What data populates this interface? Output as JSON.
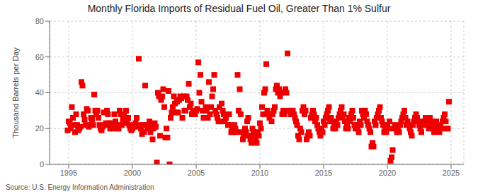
{
  "chart_data": {
    "type": "scatter",
    "title": "Monthly Florida Imports of Residual Fuel Oil, Greater Than 1% Sulfur",
    "ylabel": "Thousand Barrels per Day",
    "annotations": [
      "Source: U.S. Energy Information Administration"
    ],
    "color": "#EE0000",
    "marker": "square",
    "grid": true,
    "xlim": [
      1993.5,
      2026.0
    ],
    "xticks": [
      1995,
      2000,
      2005,
      2010,
      2015,
      2020,
      2025
    ],
    "ylim": [
      0,
      80
    ],
    "yticks": [
      0,
      20,
      40,
      60,
      80
    ],
    "x": [
      1994.917,
      1995.0,
      1995.083,
      1995.167,
      1995.25,
      1995.333,
      1995.417,
      1995.5,
      1995.583,
      1995.667,
      1995.75,
      1995.833,
      1995.917,
      1996.0,
      1996.083,
      1996.167,
      1996.25,
      1996.333,
      1996.417,
      1996.5,
      1996.583,
      1996.667,
      1996.75,
      1996.833,
      1996.917,
      1997.0,
      1997.083,
      1997.167,
      1997.25,
      1997.333,
      1997.417,
      1997.5,
      1997.583,
      1997.667,
      1997.75,
      1997.833,
      1997.917,
      1998.0,
      1998.083,
      1998.167,
      1998.25,
      1998.333,
      1998.417,
      1998.5,
      1998.583,
      1998.667,
      1998.75,
      1998.833,
      1998.917,
      1999.0,
      1999.083,
      1999.167,
      1999.25,
      1999.333,
      1999.417,
      1999.5,
      1999.583,
      1999.667,
      1999.75,
      1999.833,
      1999.917,
      2000.0,
      2000.083,
      2000.167,
      2000.25,
      2000.333,
      2000.417,
      2000.5,
      2000.583,
      2000.667,
      2000.75,
      2000.833,
      2000.917,
      2001.0,
      2001.083,
      2001.167,
      2001.25,
      2001.333,
      2001.417,
      2001.5,
      2001.583,
      2001.667,
      2001.75,
      2001.833,
      2001.917,
      2002.0,
      2002.083,
      2002.167,
      2002.25,
      2002.333,
      2002.417,
      2002.5,
      2002.583,
      2002.667,
      2002.75,
      2002.833,
      2002.917,
      2003.0,
      2003.083,
      2003.167,
      2003.25,
      2003.333,
      2003.417,
      2003.5,
      2003.583,
      2003.667,
      2003.75,
      2003.833,
      2003.917,
      2004.0,
      2004.083,
      2004.167,
      2004.25,
      2004.333,
      2004.417,
      2004.5,
      2004.583,
      2004.667,
      2004.75,
      2004.833,
      2004.917,
      2005.0,
      2005.083,
      2005.167,
      2005.25,
      2005.333,
      2005.417,
      2005.5,
      2005.583,
      2005.667,
      2005.75,
      2005.833,
      2005.917,
      2006.0,
      2006.083,
      2006.167,
      2006.25,
      2006.333,
      2006.417,
      2006.5,
      2006.583,
      2006.667,
      2006.75,
      2006.833,
      2006.917,
      2007.0,
      2007.083,
      2007.167,
      2007.25,
      2007.333,
      2007.417,
      2007.5,
      2007.583,
      2007.667,
      2007.75,
      2007.833,
      2007.917,
      2008.0,
      2008.083,
      2008.167,
      2008.25,
      2008.333,
      2008.417,
      2008.5,
      2008.583,
      2008.667,
      2008.75,
      2008.833,
      2008.917,
      2009.0,
      2009.083,
      2009.167,
      2009.25,
      2009.333,
      2009.417,
      2009.5,
      2009.583,
      2009.667,
      2009.75,
      2009.833,
      2009.917,
      2010.0,
      2010.083,
      2010.167,
      2010.25,
      2010.333,
      2010.417,
      2010.5,
      2010.583,
      2010.667,
      2010.75,
      2010.833,
      2010.917,
      2011.0,
      2011.083,
      2011.167,
      2011.25,
      2011.333,
      2011.417,
      2011.5,
      2011.583,
      2011.667,
      2011.75,
      2011.833,
      2011.917,
      2012.0,
      2012.083,
      2012.167,
      2012.25,
      2012.333,
      2012.417,
      2012.5,
      2012.583,
      2012.667,
      2012.75,
      2012.833,
      2012.917,
      2013.0,
      2013.083,
      2013.167,
      2013.25,
      2013.333,
      2013.417,
      2013.5,
      2013.583,
      2013.667,
      2013.75,
      2013.833,
      2013.917,
      2014.0,
      2014.083,
      2014.167,
      2014.25,
      2014.333,
      2014.417,
      2014.5,
      2014.583,
      2014.667,
      2014.75,
      2014.833,
      2014.917,
      2015.0,
      2015.083,
      2015.167,
      2015.25,
      2015.333,
      2015.417,
      2015.5,
      2015.583,
      2015.667,
      2015.75,
      2015.833,
      2015.917,
      2016.0,
      2016.083,
      2016.167,
      2016.25,
      2016.333,
      2016.417,
      2016.5,
      2016.583,
      2016.667,
      2016.75,
      2016.833,
      2016.917,
      2017.0,
      2017.083,
      2017.167,
      2017.25,
      2017.333,
      2017.417,
      2017.5,
      2017.583,
      2017.667,
      2017.75,
      2017.833,
      2017.917,
      2018.0,
      2018.083,
      2018.167,
      2018.25,
      2018.333,
      2018.417,
      2018.5,
      2018.583,
      2018.667,
      2018.75,
      2018.833,
      2018.917,
      2019.0,
      2019.083,
      2019.167,
      2019.25,
      2019.333,
      2019.417,
      2019.5,
      2019.583,
      2019.667,
      2019.75,
      2019.833,
      2019.917,
      2020.0,
      2020.083,
      2020.167,
      2020.25,
      2020.333,
      2020.417,
      2020.5,
      2020.583,
      2020.667,
      2020.75,
      2020.833,
      2020.917,
      2021.0,
      2021.083,
      2021.167,
      2021.25,
      2021.333,
      2021.417,
      2021.5,
      2021.583,
      2021.667,
      2021.75,
      2021.833,
      2021.917,
      2022.0,
      2022.083,
      2022.167,
      2022.25,
      2022.333,
      2022.417,
      2022.5,
      2022.583,
      2022.667,
      2022.75,
      2022.833,
      2022.917,
      2023.0,
      2023.083,
      2023.167,
      2023.25,
      2023.333,
      2023.417,
      2023.5,
      2023.583,
      2023.667,
      2023.75,
      2023.833,
      2023.917,
      2024.0,
      2024.083,
      2024.167,
      2024.25,
      2024.333,
      2024.417,
      2024.5,
      2024.583,
      2024.667,
      2024.75,
      2024.833
    ],
    "values": [
      19,
      24,
      23,
      20,
      32,
      26,
      22,
      18,
      28,
      22,
      19,
      20,
      21,
      46,
      44,
      28,
      25,
      22,
      31,
      30,
      21,
      22,
      26,
      25,
      22,
      39,
      30,
      28,
      30,
      26,
      22,
      20,
      19,
      21,
      29,
      22,
      23,
      30,
      28,
      23,
      20,
      23,
      22,
      20,
      28,
      24,
      22,
      20,
      20,
      30,
      28,
      22,
      25,
      27,
      23,
      30,
      25,
      26,
      22,
      20,
      19,
      20,
      21,
      22,
      23,
      26,
      21,
      59,
      22,
      20,
      17,
      22,
      18,
      44,
      22,
      20,
      20,
      24,
      18,
      22,
      14,
      20,
      23,
      21,
      1,
      40,
      38,
      16,
      36,
      38,
      42,
      32,
      15,
      20,
      15,
      41,
      0,
      26,
      29,
      32,
      38,
      34,
      29,
      35,
      29,
      36,
      38,
      37,
      26,
      38,
      30,
      30,
      38,
      36,
      45,
      32,
      34,
      28,
      30,
      28,
      28,
      30,
      31,
      57,
      40,
      50,
      35,
      30,
      26,
      30,
      32,
      30,
      26,
      46,
      28,
      32,
      38,
      42,
      50,
      30,
      28,
      26,
      24,
      32,
      24,
      34,
      30,
      28,
      24,
      26,
      28,
      22,
      28,
      22,
      18,
      20,
      18,
      22,
      20,
      18,
      50,
      30,
      42,
      28,
      18,
      14,
      16,
      20,
      18,
      24,
      26,
      16,
      14,
      12,
      20,
      18,
      16,
      14,
      12,
      18,
      16,
      23,
      20,
      32,
      28,
      40,
      42,
      56,
      30,
      28,
      26,
      28,
      24,
      28,
      30,
      32,
      42,
      44,
      40,
      42,
      38,
      40,
      28,
      30,
      28,
      42,
      40,
      62,
      30,
      30,
      28,
      28,
      30,
      28,
      26,
      24,
      22,
      16,
      14,
      20,
      18,
      30,
      32,
      28,
      30,
      14,
      16,
      18,
      16,
      26,
      28,
      30,
      28,
      24,
      26,
      22,
      20,
      18,
      16,
      20,
      18,
      24,
      22,
      26,
      28,
      30,
      32,
      24,
      26,
      24,
      20,
      22,
      20,
      24,
      22,
      26,
      28,
      30,
      32,
      26,
      28,
      24,
      20,
      22,
      20,
      26,
      24,
      28,
      30,
      26,
      22,
      20,
      22,
      20,
      18,
      24,
      22,
      30,
      28,
      26,
      30,
      28,
      24,
      22,
      20,
      18,
      10,
      12,
      10,
      24,
      22,
      26,
      28,
      30,
      32,
      26,
      24,
      22,
      18,
      20,
      18,
      22,
      20,
      24,
      2,
      4,
      8,
      20,
      22,
      20,
      18,
      20,
      18,
      22,
      24,
      26,
      28,
      30,
      26,
      22,
      24,
      22,
      20,
      18,
      16,
      22,
      24,
      26,
      28,
      26,
      24,
      22,
      20,
      18,
      22,
      24,
      22,
      26,
      24,
      22,
      20,
      26,
      24,
      22,
      20,
      18,
      22,
      24,
      22,
      20,
      18,
      22,
      20,
      24,
      26,
      28,
      24,
      20,
      20,
      35
    ]
  }
}
